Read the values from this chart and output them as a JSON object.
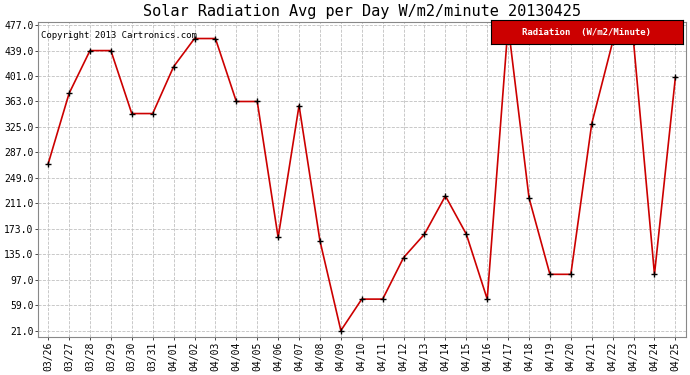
{
  "title": "Solar Radiation Avg per Day W/m2/minute 20130425",
  "copyright": "Copyright 2013 Cartronics.com",
  "legend_label": "Radiation  (W/m2/Minute)",
  "dates": [
    "03/26",
    "03/27",
    "03/28",
    "03/29",
    "03/30",
    "03/31",
    "04/01",
    "04/02",
    "04/03",
    "04/04",
    "04/05",
    "04/06",
    "04/07",
    "04/08",
    "04/09",
    "04/10",
    "04/11",
    "04/12",
    "04/13",
    "04/14",
    "04/15",
    "04/16",
    "04/17",
    "04/18",
    "04/19",
    "04/20",
    "04/21",
    "04/22",
    "04/23",
    "04/24",
    "04/25"
  ],
  "values": [
    270,
    375,
    439,
    439,
    345,
    345,
    415,
    457,
    457,
    363,
    363,
    160,
    357,
    155,
    21,
    68,
    68,
    130,
    165,
    222,
    165,
    68,
    477,
    219,
    105,
    105,
    330,
    452,
    452,
    105,
    399
  ],
  "yticks": [
    21.0,
    59.0,
    97.0,
    135.0,
    173.0,
    211.0,
    249.0,
    287.0,
    325.0,
    363.0,
    401.0,
    439.0,
    477.0
  ],
  "line_color": "#cc0000",
  "marker_color": "#000000",
  "bg_color": "#ffffff",
  "plot_bg_color": "#ffffff",
  "grid_color": "#c0c0c0",
  "title_fontsize": 11,
  "tick_fontsize": 7,
  "legend_bg_color": "#cc0000",
  "legend_text_color": "#ffffff",
  "ymin": 21.0,
  "ymax": 477.0
}
